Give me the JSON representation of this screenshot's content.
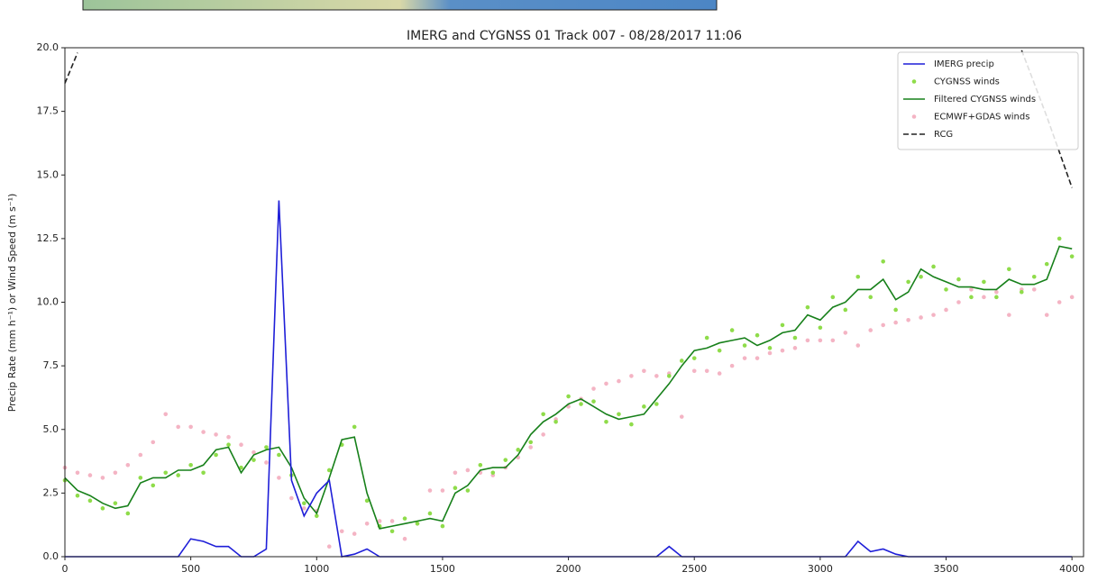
{
  "chart_data": {
    "type": "line",
    "title": "IMERG and CYGNSS 01 Track 007 - 08/28/2017 11:06",
    "y_label": "Precip Rate (mm h⁻¹) or Wind Speed (m s⁻¹)",
    "xlim": [
      0,
      4046
    ],
    "ylim": [
      0,
      20
    ],
    "xticks": [
      0,
      500,
      1000,
      1500,
      2000,
      2500,
      3000,
      3500,
      4000
    ],
    "yticks": [
      {
        "value": 0,
        "label": "0.0"
      },
      2.5,
      {
        "value": 5,
        "label": "5.0"
      },
      7.5,
      {
        "value": 10,
        "label": "10.0"
      },
      12.5,
      {
        "value": 15,
        "label": "15.0"
      },
      17.5,
      {
        "value": 20,
        "label": "20.0"
      }
    ],
    "grid": false,
    "legend": "upper right",
    "x": [
      0,
      50,
      100,
      150,
      200,
      250,
      300,
      350,
      400,
      450,
      500,
      550,
      600,
      650,
      700,
      750,
      800,
      850,
      900,
      950,
      1000,
      1050,
      1100,
      1150,
      1200,
      1250,
      1300,
      1350,
      1400,
      1450,
      1500,
      1550,
      1600,
      1650,
      1700,
      1750,
      1800,
      1850,
      1900,
      1950,
      2000,
      2050,
      2100,
      2150,
      2200,
      2250,
      2300,
      2350,
      2400,
      2450,
      2500,
      2550,
      2600,
      2650,
      2700,
      2750,
      2800,
      2850,
      2900,
      2950,
      3000,
      3050,
      3100,
      3150,
      3200,
      3250,
      3300,
      3350,
      3400,
      3450,
      3500,
      3550,
      3600,
      3650,
      3700,
      3750,
      3800,
      3850,
      3900,
      3950,
      4000
    ],
    "series": [
      {
        "name": "IMERG precip",
        "color": "#1f1fd8",
        "style": "line",
        "values": [
          0,
          0,
          0,
          0,
          0,
          0,
          0,
          0,
          0,
          0,
          0.7,
          0.6,
          0.4,
          0.4,
          0,
          0,
          0.3,
          14.0,
          3.0,
          1.6,
          2.5,
          3.0,
          0,
          0.1,
          0.3,
          0,
          0,
          0,
          0,
          0,
          0,
          0,
          0,
          0,
          0,
          0,
          0,
          0,
          0,
          0,
          0,
          0,
          0,
          0,
          0,
          0,
          0,
          0,
          0.4,
          0,
          0,
          0,
          0,
          0,
          0,
          0,
          0,
          0,
          0,
          0,
          0,
          0,
          0,
          0.6,
          0.2,
          0.3,
          0.1,
          0,
          0,
          0,
          0,
          0,
          0,
          0,
          0,
          0,
          0,
          0,
          0,
          0,
          0
        ]
      },
      {
        "name": "CYGNSS winds",
        "color": "#8fdc4a",
        "style": "dots",
        "values": [
          3.0,
          2.4,
          2.2,
          1.9,
          2.1,
          1.7,
          3.1,
          2.8,
          3.3,
          3.2,
          3.6,
          3.3,
          4.0,
          4.4,
          3.5,
          3.8,
          4.3,
          4.0,
          3.2,
          2.1,
          1.6,
          3.4,
          4.4,
          5.1,
          2.2,
          1.2,
          1.0,
          1.5,
          1.3,
          1.7,
          1.2,
          2.7,
          2.6,
          3.6,
          3.3,
          3.8,
          4.2,
          4.5,
          5.6,
          5.3,
          6.3,
          6.0,
          6.1,
          5.3,
          5.6,
          5.2,
          5.9,
          6.0,
          7.1,
          7.7,
          7.8,
          8.6,
          8.1,
          8.9,
          8.3,
          8.7,
          8.2,
          9.1,
          8.6,
          9.8,
          9.0,
          10.2,
          9.7,
          11.0,
          10.2,
          11.6,
          9.7,
          10.8,
          11.0,
          11.4,
          10.5,
          10.9,
          10.2,
          10.8,
          10.2,
          11.3,
          10.4,
          11.0,
          11.5,
          12.5,
          11.8
        ]
      },
      {
        "name": "Filtered CYGNSS winds",
        "color": "#17801a",
        "style": "line",
        "values": [
          3.1,
          2.6,
          2.4,
          2.1,
          1.9,
          2.0,
          2.9,
          3.1,
          3.1,
          3.4,
          3.4,
          3.6,
          4.2,
          4.3,
          3.3,
          4.0,
          4.2,
          4.3,
          3.5,
          2.3,
          1.7,
          3.1,
          4.6,
          4.7,
          2.5,
          1.1,
          1.2,
          1.3,
          1.4,
          1.5,
          1.4,
          2.5,
          2.8,
          3.4,
          3.5,
          3.5,
          4.0,
          4.8,
          5.3,
          5.6,
          6.0,
          6.2,
          5.9,
          5.6,
          5.4,
          5.5,
          5.6,
          6.2,
          6.8,
          7.5,
          8.1,
          8.2,
          8.4,
          8.5,
          8.6,
          8.3,
          8.5,
          8.8,
          8.9,
          9.5,
          9.3,
          9.8,
          10.0,
          10.5,
          10.5,
          10.9,
          10.1,
          10.4,
          11.3,
          11.0,
          10.8,
          10.6,
          10.6,
          10.5,
          10.5,
          10.9,
          10.7,
          10.7,
          10.9,
          12.2,
          12.1
        ]
      },
      {
        "name": "ECMWF+GDAS winds",
        "color": "#f4b4c4",
        "style": "dots",
        "values": [
          3.5,
          3.3,
          3.2,
          3.1,
          3.3,
          3.6,
          4.0,
          4.5,
          5.6,
          5.1,
          5.1,
          4.9,
          4.8,
          4.7,
          4.4,
          4.1,
          3.7,
          3.1,
          2.3,
          1.9,
          1.8,
          0.4,
          1.0,
          0.9,
          1.3,
          1.4,
          1.4,
          0.7,
          1.3,
          2.6,
          2.6,
          3.3,
          3.4,
          3.3,
          3.2,
          3.5,
          3.9,
          4.3,
          4.8,
          5.4,
          5.9,
          6.2,
          6.6,
          6.8,
          6.9,
          7.1,
          7.3,
          7.1,
          7.2,
          5.5,
          7.3,
          7.3,
          7.2,
          7.5,
          7.8,
          7.8,
          8.0,
          8.1,
          8.2,
          8.5,
          8.5,
          8.5,
          8.8,
          8.3,
          8.9,
          9.1,
          9.2,
          9.3,
          9.4,
          9.5,
          9.7,
          10.0,
          10.5,
          10.2,
          10.4,
          9.5,
          10.5,
          10.5,
          9.5,
          10.0,
          10.2
        ]
      },
      {
        "name": "RCG",
        "color": "#222222",
        "style": "dashed",
        "values": [
          18.6,
          19.8,
          null,
          null,
          null,
          null,
          null,
          null,
          null,
          null,
          null,
          null,
          null,
          null,
          null,
          null,
          null,
          null,
          null,
          null,
          null,
          null,
          null,
          null,
          null,
          null,
          null,
          null,
          null,
          null,
          null,
          null,
          null,
          null,
          null,
          null,
          null,
          null,
          null,
          null,
          null,
          null,
          null,
          null,
          null,
          null,
          null,
          null,
          null,
          null,
          null,
          null,
          null,
          null,
          null,
          null,
          null,
          null,
          null,
          null,
          null,
          null,
          null,
          null,
          null,
          null,
          null,
          null,
          null,
          null,
          null,
          null,
          null,
          null,
          null,
          null,
          19.9,
          18.6,
          17.3,
          15.9,
          14.5
        ]
      }
    ]
  }
}
